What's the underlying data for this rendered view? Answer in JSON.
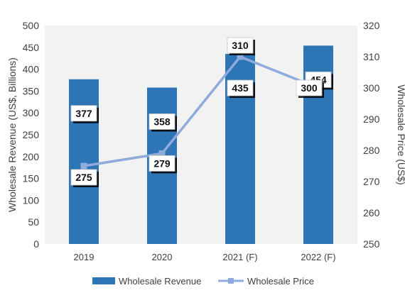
{
  "chart_data": {
    "type": "bar",
    "categories": [
      "2019",
      "2020",
      "2021 (F)",
      "2022 (F)"
    ],
    "series": [
      {
        "name": "Wholesale Revenue",
        "type": "bar",
        "axis": "left",
        "values": [
          377,
          358,
          435,
          454
        ],
        "data_labels": [
          "377",
          "358",
          "435",
          "454"
        ],
        "color": "#2e75b6"
      },
      {
        "name": "Wholesale Price",
        "type": "line",
        "axis": "right",
        "values": [
          275,
          279,
          310,
          300
        ],
        "data_labels": [
          "275",
          "279",
          "310",
          "300"
        ],
        "color": "#8faadc"
      }
    ],
    "ylabel": "Wholesale Revenue (US$, Billions)",
    "y2label": "Wholesale Price (US$)",
    "ylim": [
      0,
      500
    ],
    "y2lim": [
      250,
      320
    ],
    "yticks": [
      "0",
      "50",
      "100",
      "150",
      "200",
      "250",
      "300",
      "350",
      "400",
      "450",
      "500"
    ],
    "y2ticks": [
      "250",
      "260",
      "270",
      "280",
      "290",
      "300",
      "310",
      "320"
    ],
    "grid": false,
    "plot_background": "#f2f2f2",
    "legend_position": "bottom"
  }
}
